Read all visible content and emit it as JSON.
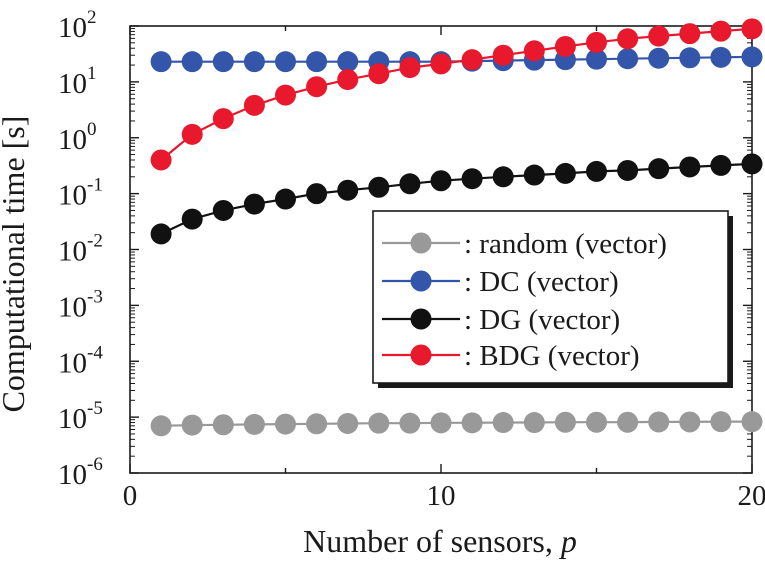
{
  "chart_data": {
    "type": "line",
    "xlabel": "Number of sensors,",
    "xlabel_var": "p",
    "ylabel": "Computational time [s]",
    "xlim": [
      0,
      20
    ],
    "ylim_log10": [
      -6,
      2
    ],
    "y_scale": "log",
    "x_ticks": [
      "0",
      "10",
      "20"
    ],
    "y_ticks": [
      {
        "base": "10",
        "exp": "2"
      },
      {
        "base": "10",
        "exp": "1"
      },
      {
        "base": "10",
        "exp": "0"
      },
      {
        "base": "10",
        "exp": "-1"
      },
      {
        "base": "10",
        "exp": "-2"
      },
      {
        "base": "10",
        "exp": "-3"
      },
      {
        "base": "10",
        "exp": "-4"
      },
      {
        "base": "10",
        "exp": "-5"
      },
      {
        "base": "10",
        "exp": "-6"
      }
    ],
    "grid": false,
    "legend_position": "center-right",
    "x": [
      1,
      2,
      3,
      4,
      5,
      6,
      7,
      8,
      9,
      10,
      11,
      12,
      13,
      14,
      15,
      16,
      17,
      18,
      19,
      20
    ],
    "series": [
      {
        "name": ": random (vector)",
        "color": "#999999",
        "values": [
          7e-06,
          7.2e-06,
          7.3e-06,
          7.4e-06,
          7.5e-06,
          7.6e-06,
          7.7e-06,
          7.8e-06,
          7.8e-06,
          7.9e-06,
          7.9e-06,
          8e-06,
          8e-06,
          8.1e-06,
          8.1e-06,
          8.1e-06,
          8.2e-06,
          8.2e-06,
          8.3e-06,
          8.3e-06
        ]
      },
      {
        "name": ": DC (vector)",
        "color": "#3355aa",
        "values": [
          23,
          23,
          23,
          23,
          23,
          23,
          23,
          23,
          23,
          23,
          23.5,
          24,
          24.5,
          25,
          25.5,
          26,
          26.5,
          27,
          27.5,
          28
        ]
      },
      {
        "name": ": DG (vector)",
        "color": "#111111",
        "values": [
          0.019,
          0.035,
          0.05,
          0.065,
          0.08,
          0.1,
          0.115,
          0.13,
          0.15,
          0.17,
          0.185,
          0.2,
          0.215,
          0.23,
          0.25,
          0.26,
          0.28,
          0.3,
          0.32,
          0.34
        ]
      },
      {
        "name": ": BDG (vector)",
        "color": "#e8192c",
        "values": [
          0.4,
          1.15,
          2.2,
          3.8,
          5.8,
          8.2,
          11,
          14,
          18,
          21,
          25,
          30,
          36,
          43,
          51,
          59,
          66,
          73,
          81,
          89
        ]
      }
    ]
  }
}
